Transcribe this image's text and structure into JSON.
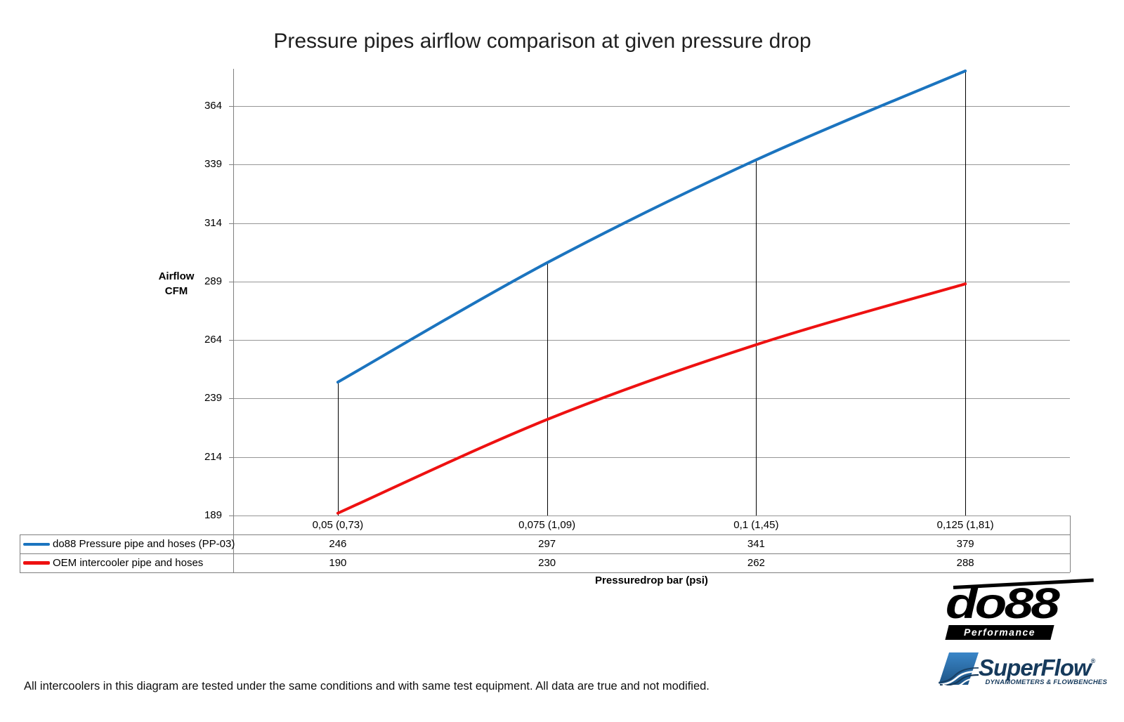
{
  "title": "Pressure pipes airflow comparison at given pressure drop",
  "chart_data": {
    "type": "line",
    "title": "Pressure pipes airflow comparison at given pressure drop",
    "xlabel": "Pressuredrop bar (psi)",
    "ylabel_lines": [
      "Airflow",
      "CFM"
    ],
    "categories": [
      "0,05 (0,73)",
      "0,075 (1,09)",
      "0,1 (1,45)",
      "0,125 (1,81)"
    ],
    "y_ticks": [
      189,
      214,
      239,
      264,
      289,
      314,
      339,
      364
    ],
    "ylim": [
      189,
      380
    ],
    "grid": true,
    "drop_lines": true,
    "legend_position": "table-left",
    "series": [
      {
        "name": "do88 Pressure pipe and hoses (PP-03)",
        "color": "#1b74bf",
        "marker_thickness": 4,
        "values": [
          246,
          297,
          341,
          379
        ]
      },
      {
        "name": "OEM intercooler pipe and hoses",
        "color": "#ee1111",
        "marker_thickness": 5,
        "values": [
          190,
          230,
          262,
          288
        ]
      }
    ]
  },
  "footer": {
    "disclaimer": "All intercoolers in this diagram are tested under the same conditions and with same test equipment. All data are true and not modified."
  },
  "logos": {
    "do88": {
      "word": "do88",
      "sub": "Performance"
    },
    "superflow": {
      "word": "SuperFlow",
      "reg": "®",
      "tagline": "DYNAMOMETERS & FLOWBENCHES",
      "navy": "#163a5c",
      "blue": "#2e75b6"
    }
  }
}
